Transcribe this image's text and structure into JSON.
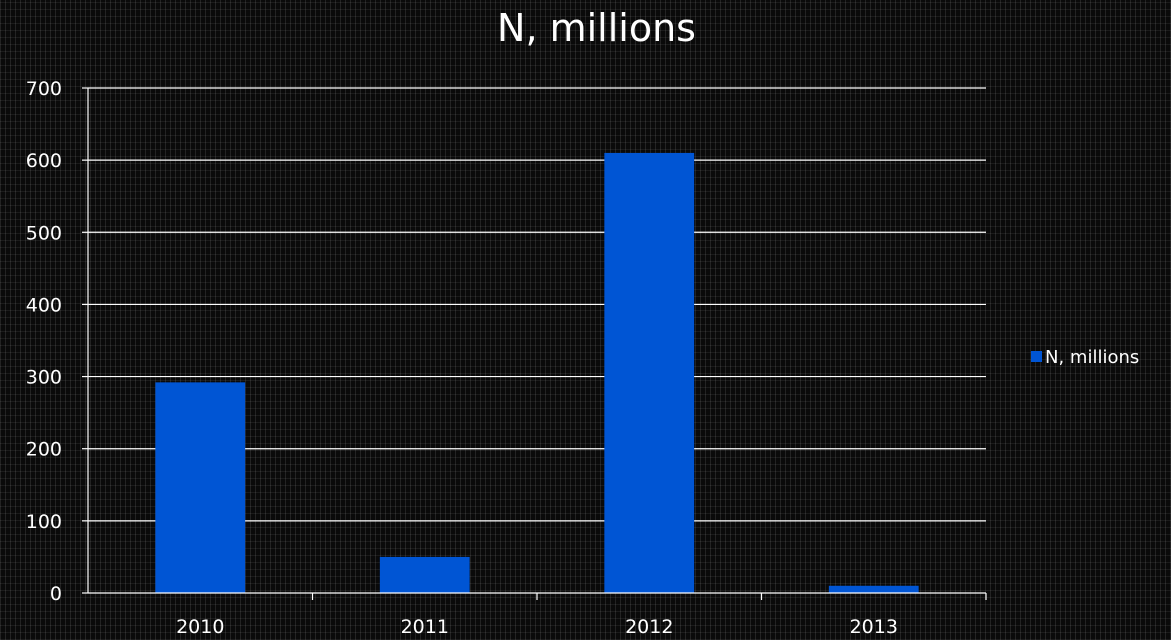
{
  "chart_data": {
    "type": "bar",
    "title": "N, millions",
    "xlabel": "",
    "ylabel": "",
    "categories": [
      "2010",
      "2011",
      "2012",
      "2013"
    ],
    "series": [
      {
        "name": "N, millions",
        "values": [
          292,
          50,
          610,
          10
        ],
        "color": "#0055d4"
      }
    ],
    "ylim": [
      0,
      700
    ],
    "yticks": [
      0,
      100,
      200,
      300,
      400,
      500,
      600,
      700
    ],
    "grid": true,
    "legend_position": "right",
    "colors": {
      "gridline": "#ffffff",
      "axis": "#ffffff",
      "text": "#ffffff"
    }
  }
}
